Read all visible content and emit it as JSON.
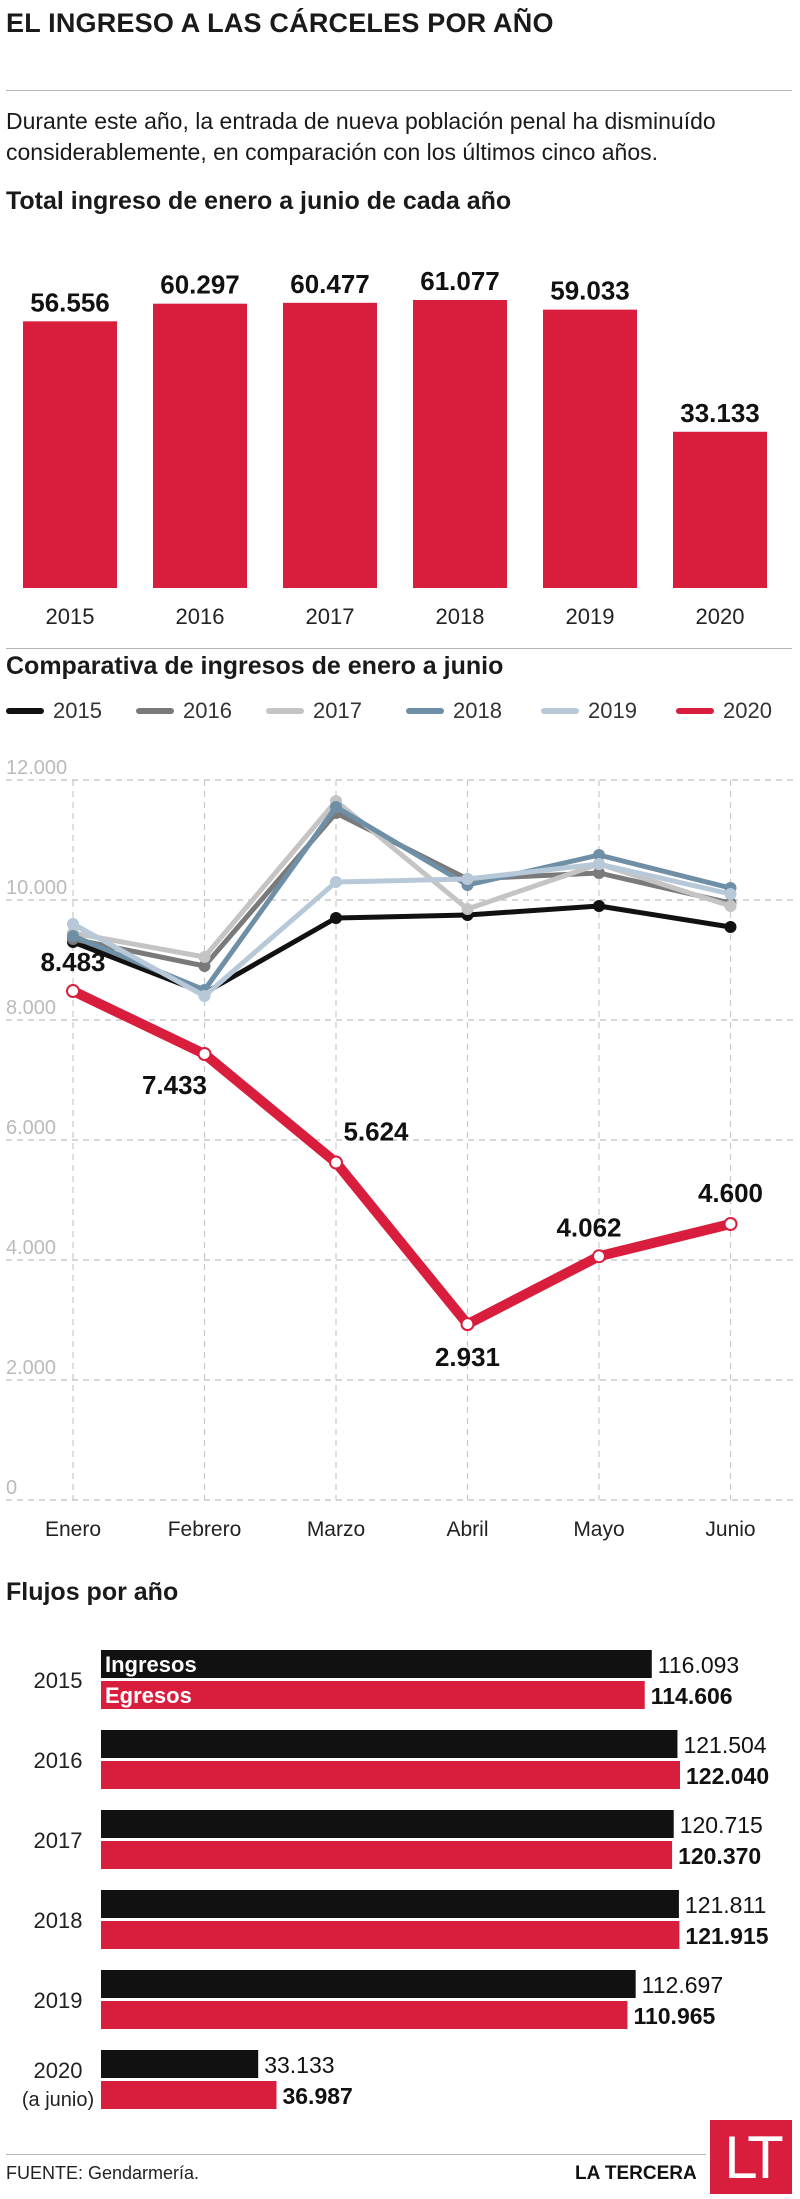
{
  "header": {
    "title": "EL INGRESO A LAS CÁRCELES POR AÑO",
    "intro": "Durante este año, la entrada de nueva población penal ha disminuído considerablemente, en comparación con los últimos cinco años."
  },
  "colors": {
    "accent_red": "#d91e3d",
    "black": "#111111",
    "y2016": "#7a7a7a",
    "y2017": "#c4c4c4",
    "y2018": "#6f8fa6",
    "y2019": "#b7c9d8"
  },
  "chart_data": [
    {
      "type": "bar",
      "title": "Total ingreso de enero a junio de cada año",
      "categories": [
        "2015",
        "2016",
        "2017",
        "2018",
        "2019",
        "2020"
      ],
      "values": [
        56556,
        60297,
        60477,
        61077,
        59033,
        33133
      ],
      "value_labels": [
        "56.556",
        "60.297",
        "60.477",
        "61.077",
        "59.033",
        "33.133"
      ],
      "ylim": [
        0,
        61077
      ]
    },
    {
      "type": "line",
      "title": "Comparativa de ingresos de enero a junio",
      "categories": [
        "Enero",
        "Febrero",
        "Marzo",
        "Abril",
        "Mayo",
        "Junio"
      ],
      "yticks": [
        0,
        2000,
        4000,
        6000,
        8000,
        10000,
        12000
      ],
      "ytick_labels": [
        "0",
        "2.000",
        "4.000",
        "6.000",
        "8.000",
        "10.000",
        "12.000"
      ],
      "ylim": [
        0,
        12000
      ],
      "grid": true,
      "legend_position": "top",
      "series": [
        {
          "name": "2015",
          "color": "#111111",
          "values": [
            9300,
            8450,
            9700,
            9750,
            9900,
            9550
          ]
        },
        {
          "name": "2016",
          "color": "#7a7a7a",
          "values": [
            9350,
            8900,
            11450,
            10350,
            10450,
            9950
          ]
        },
        {
          "name": "2017",
          "color": "#c4c4c4",
          "values": [
            9450,
            9050,
            11650,
            9850,
            10600,
            9900
          ]
        },
        {
          "name": "2018",
          "color": "#6f8fa6",
          "values": [
            9400,
            8500,
            11550,
            10250,
            10750,
            10200
          ]
        },
        {
          "name": "2019",
          "color": "#b7c9d8",
          "values": [
            9600,
            8400,
            10300,
            10350,
            10600,
            10100
          ]
        },
        {
          "name": "2020",
          "color": "#d91e3d",
          "values": [
            8483,
            7433,
            5624,
            2931,
            4062,
            4600
          ],
          "value_labels": [
            "8.483",
            "7.433",
            "5.624",
            "2.931",
            "4.062",
            "4.600"
          ]
        }
      ]
    },
    {
      "type": "bar",
      "title": "Flujos por año",
      "orientation": "horizontal",
      "categories": [
        "2015",
        "2016",
        "2017",
        "2018",
        "2019",
        "2020"
      ],
      "category_notes": [
        "",
        "",
        "",
        "",
        "",
        "(a junio)"
      ],
      "series": [
        {
          "name": "Ingresos",
          "color": "#111111",
          "values": [
            116093,
            121504,
            120715,
            121811,
            112697,
            33133
          ],
          "value_labels": [
            "116.093",
            "121.504",
            "120.715",
            "121.811",
            "112.697",
            "33.133"
          ]
        },
        {
          "name": "Egresos",
          "color": "#d91e3d",
          "values": [
            114606,
            122040,
            120370,
            121915,
            110965,
            36987
          ],
          "value_labels": [
            "114.606",
            "122.040",
            "120.370",
            "121.915",
            "110.965",
            "36.987"
          ]
        }
      ],
      "xlim": [
        0,
        122040
      ]
    }
  ],
  "footer": {
    "source": "FUENTE: Gendarmería.",
    "brand": "LA TERCERA",
    "logo": "LT"
  }
}
